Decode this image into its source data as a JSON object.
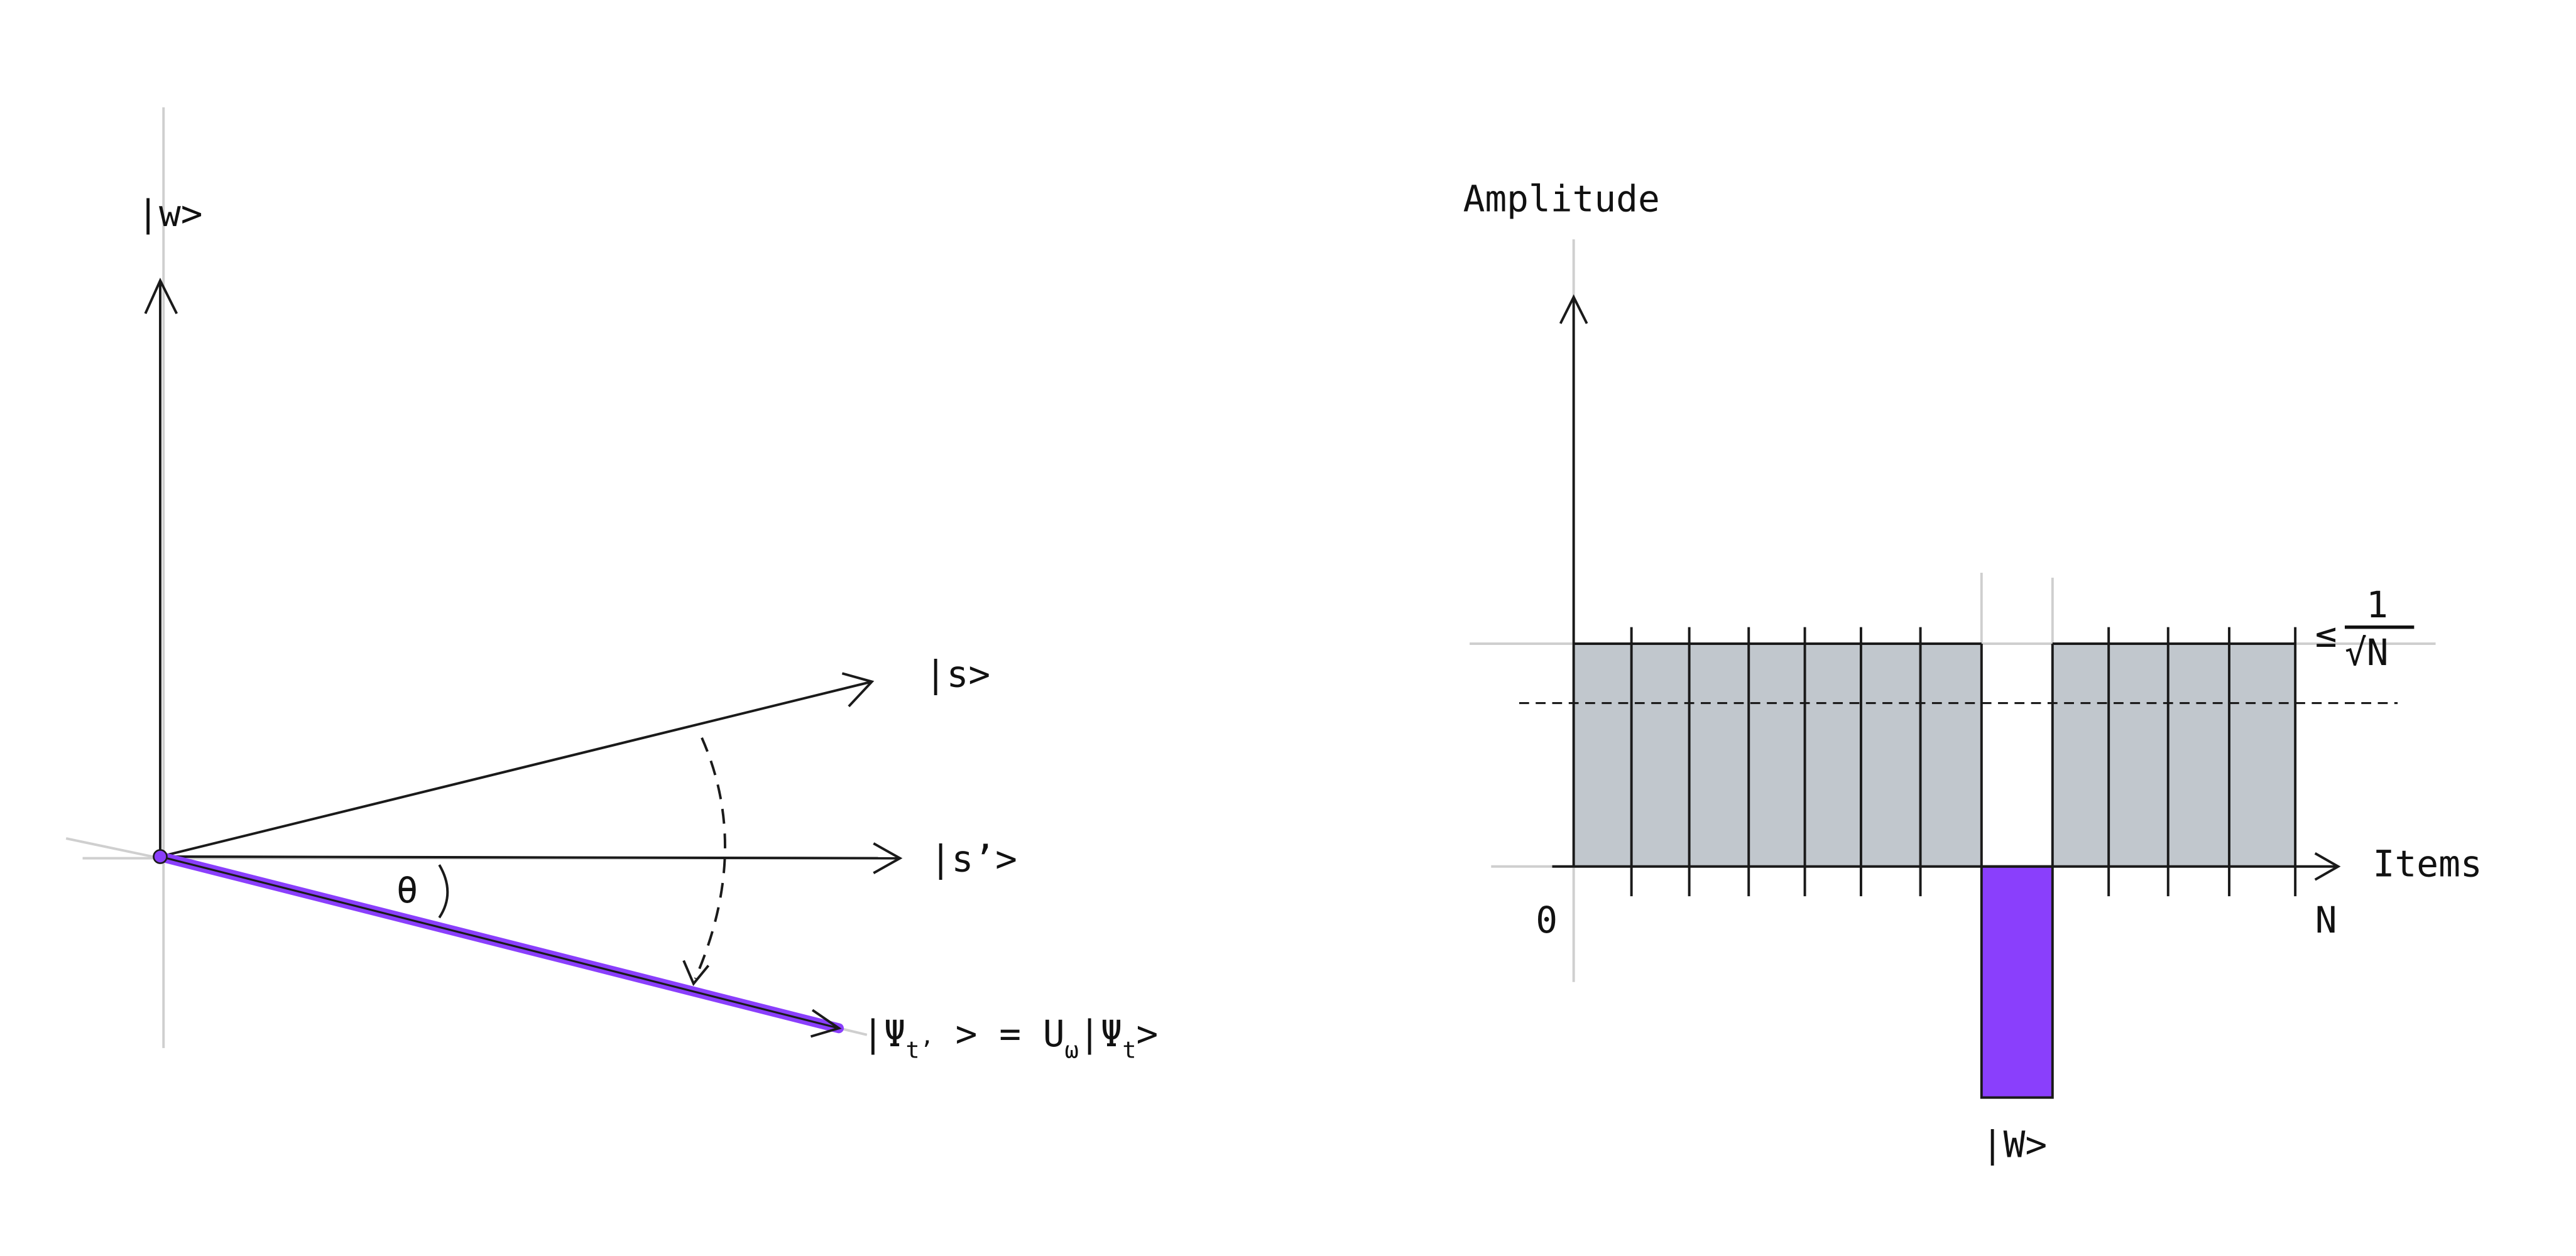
{
  "left_diagram": {
    "axis_label_w": "|w>",
    "vector_s_label": "|s>",
    "vector_s_prime_label": "|s’>",
    "angle_label": "θ",
    "psi_label": {
      "open": "|Ψ",
      "sub1": "t’",
      "mid": " > = U",
      "sub2": "ω",
      "mid2": "|Ψ",
      "sub3": "t",
      "close": ">"
    },
    "colors": {
      "state_vector": "#8a3ffc",
      "ink": "#1a1a1a",
      "guide": "#cfcfcf"
    }
  },
  "right_diagram": {
    "y_axis_label": "Amplitude",
    "x_axis_label": "Items",
    "x_start_label": "0",
    "x_end_label": "N",
    "marked_label": "|W>",
    "bound_label": {
      "rel": "≤",
      "numerator": "1",
      "denominator": "√N"
    },
    "colors": {
      "bar_fill": "#c1c7cd",
      "marked_fill": "#8a3ffc"
    }
  }
}
